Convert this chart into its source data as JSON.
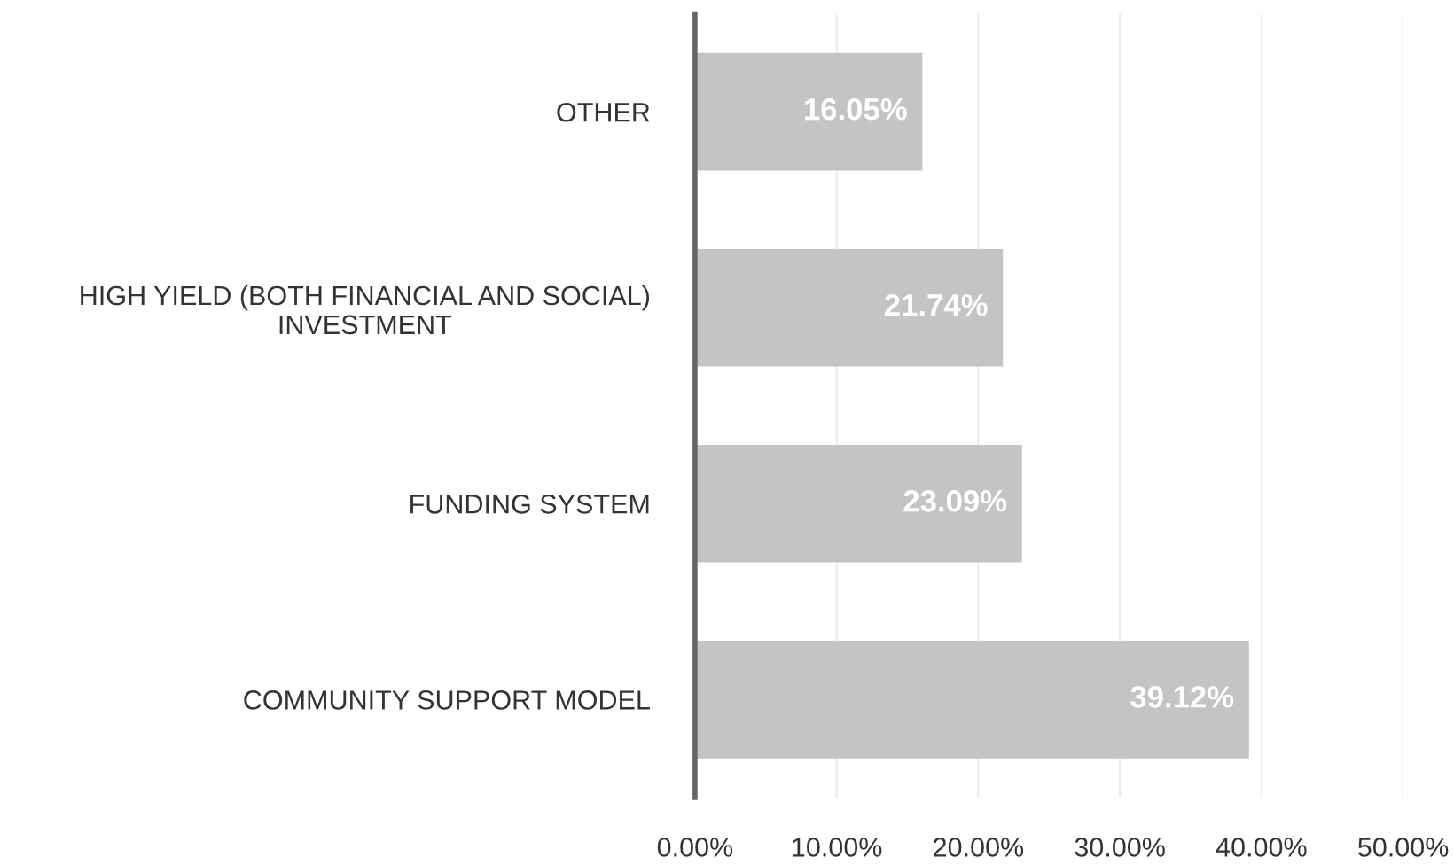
{
  "chart_data": {
    "type": "bar",
    "orientation": "horizontal",
    "categories": [
      "OTHER",
      "HIGH YIELD (BOTH FINANCIAL AND SOCIAL)\nINVESTMENT",
      "FUNDING SYSTEM",
      "COMMUNITY SUPPORT MODEL"
    ],
    "values": [
      16.05,
      21.74,
      23.09,
      39.12
    ],
    "value_labels": [
      "16.05%",
      "21.74%",
      "23.09%",
      "39.12%"
    ],
    "color": "#c4c4c4",
    "xlim": [
      0,
      50
    ],
    "xticks": [
      {
        "value": 0,
        "label": "0.00%"
      },
      {
        "value": 10,
        "label": "10.00%"
      },
      {
        "value": 20,
        "label": "20.00%"
      },
      {
        "value": 30,
        "label": "30.00%"
      },
      {
        "value": 40,
        "label": "40.00%"
      },
      {
        "value": 50,
        "label": "50.00%"
      }
    ],
    "grid": "x"
  }
}
